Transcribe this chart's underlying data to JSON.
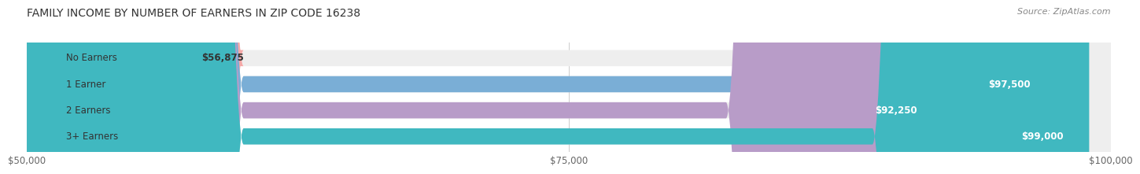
{
  "title": "FAMILY INCOME BY NUMBER OF EARNERS IN ZIP CODE 16238",
  "source": "Source: ZipAtlas.com",
  "categories": [
    "No Earners",
    "1 Earner",
    "2 Earners",
    "3+ Earners"
  ],
  "values": [
    56875,
    97500,
    92250,
    99000
  ],
  "bar_colors": [
    "#f4a9a8",
    "#7aaed6",
    "#b89cc8",
    "#40b8c0"
  ],
  "bar_bg_color": "#eeeeee",
  "value_labels": [
    "$56,875",
    "$97,500",
    "$92,250",
    "$99,000"
  ],
  "xmin": 50000,
  "xmax": 100000,
  "xticks": [
    50000,
    75000,
    100000
  ],
  "xtick_labels": [
    "$50,000",
    "$75,000",
    "$100,000"
  ],
  "background_color": "#ffffff",
  "title_fontsize": 10,
  "source_fontsize": 8,
  "label_fontsize": 8.5,
  "tick_fontsize": 8.5
}
